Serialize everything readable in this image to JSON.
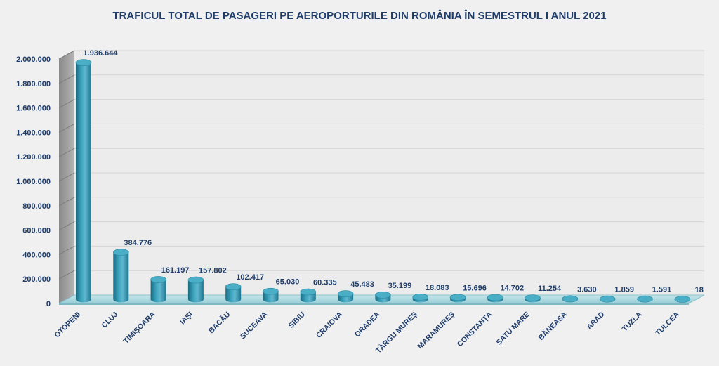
{
  "chart_data": {
    "type": "bar",
    "title": "TRAFICUL TOTAL DE PASAGERI PE AEROPORTURILE DIN ROMÂNIA ÎN SEMESTRUL I ANUL 2021",
    "xlabel": "",
    "ylabel": "",
    "categories": [
      "OTOPENI",
      "CLUJ",
      "TIMIȘOARA",
      "IAȘI",
      "BACĂU",
      "SUCEAVA",
      "SIBIU",
      "CRAIOVA",
      "ORADEA",
      "TÂRGU MUREȘ",
      "MARAMUREȘ",
      "CONSTANȚA",
      "SATU MARE",
      "BĂNEASA",
      "ARAD",
      "TUZLA",
      "TULCEA"
    ],
    "values": [
      1936644,
      384776,
      161197,
      157802,
      102417,
      65030,
      60335,
      45483,
      35199,
      18083,
      15696,
      14702,
      11254,
      3630,
      1859,
      1591,
      18
    ],
    "value_labels": [
      "1.936.644",
      "384.776",
      "161.197",
      "157.802",
      "102.417",
      "65.030",
      "60.335",
      "45.483",
      "35.199",
      "18.083",
      "15.696",
      "14.702",
      "11.254",
      "3.630",
      "1.859",
      "1.591",
      "18"
    ],
    "ylim": [
      0,
      2000000
    ],
    "yticks": [
      0,
      200000,
      400000,
      600000,
      800000,
      1000000,
      1200000,
      1400000,
      1600000,
      1800000,
      2000000
    ],
    "ytick_labels": [
      "0",
      "200.000",
      "400.000",
      "600.000",
      "800.000",
      "1.000.000",
      "1.200.000",
      "1.400.000",
      "1.600.000",
      "1.800.000",
      "2.000.000"
    ],
    "grid": true,
    "legend": "none",
    "colors": {
      "bar": "#2e8fa8",
      "bar_dark": "#1a6a80",
      "bar_light": "#5fb8cf",
      "text": "#1f3d6b",
      "wall": "#ececec",
      "side_wall": "#9a9a9a",
      "floor": "#a9d6de",
      "background": "#f0f0f0"
    }
  }
}
